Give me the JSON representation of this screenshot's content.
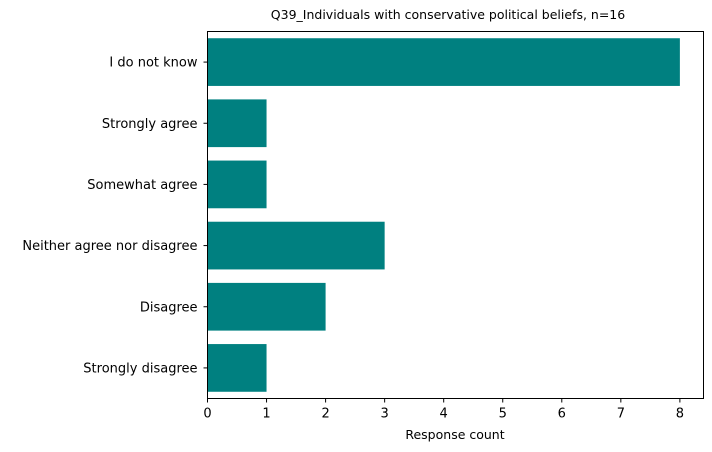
{
  "chart_data": {
    "type": "bar",
    "orientation": "horizontal",
    "title": "Q39_Individuals with conservative political beliefs, n=16",
    "xlabel": "Response count",
    "ylabel": "",
    "categories": [
      "I do not know",
      "Strongly agree",
      "Somewhat agree",
      "Neither agree nor disagree",
      "Disagree",
      "Strongly disagree"
    ],
    "values": [
      8,
      1,
      1,
      3,
      2,
      1
    ],
    "xlim": [
      0,
      8.4
    ],
    "xticks": [
      "0",
      "1",
      "2",
      "3",
      "4",
      "5",
      "6",
      "7",
      "8"
    ],
    "grid": false,
    "bar_color": "#008080"
  }
}
